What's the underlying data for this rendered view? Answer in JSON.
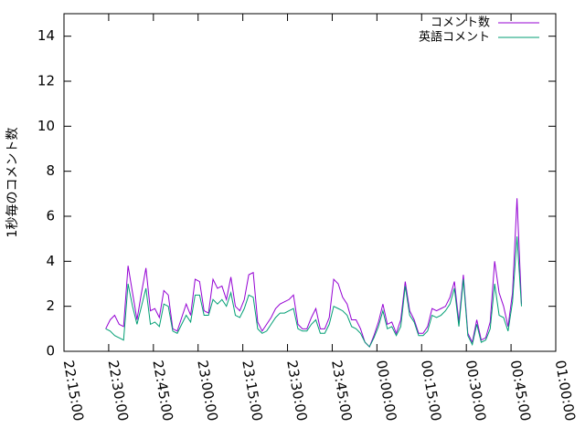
{
  "chart_data": {
    "type": "line",
    "ylabel": "1秒毎のコメント数",
    "x": [
      "22:29:00",
      "22:30:30",
      "22:32:00",
      "22:33:30",
      "22:35:00",
      "22:36:30",
      "22:38:00",
      "22:39:30",
      "22:41:00",
      "22:42:30",
      "22:44:00",
      "22:45:30",
      "22:47:00",
      "22:48:30",
      "22:50:00",
      "22:51:30",
      "22:53:00",
      "22:54:30",
      "22:56:00",
      "22:57:30",
      "22:59:00",
      "23:00:30",
      "23:02:00",
      "23:03:30",
      "23:05:00",
      "23:06:30",
      "23:08:00",
      "23:09:30",
      "23:11:00",
      "23:12:30",
      "23:14:00",
      "23:15:30",
      "23:17:00",
      "23:18:30",
      "23:20:00",
      "23:21:30",
      "23:23:00",
      "23:24:30",
      "23:26:00",
      "23:27:30",
      "23:29:00",
      "23:30:30",
      "23:32:00",
      "23:33:30",
      "23:35:00",
      "23:36:30",
      "23:38:00",
      "23:39:30",
      "23:41:00",
      "23:42:30",
      "23:44:00",
      "23:45:30",
      "23:47:00",
      "23:48:30",
      "23:50:00",
      "23:51:30",
      "23:53:00",
      "23:54:30",
      "23:56:00",
      "23:57:30",
      "23:59:00",
      "00:00:30",
      "00:02:00",
      "00:03:30",
      "00:05:00",
      "00:06:30",
      "00:08:00",
      "00:09:30",
      "00:11:00",
      "00:12:30",
      "00:14:00",
      "00:15:30",
      "00:17:00",
      "00:18:30",
      "00:20:00",
      "00:21:30",
      "00:23:00",
      "00:24:30",
      "00:26:00",
      "00:27:30",
      "00:29:00",
      "00:30:30",
      "00:32:00",
      "00:33:30",
      "00:35:00",
      "00:36:30",
      "00:38:00",
      "00:39:30",
      "00:41:00",
      "00:42:30",
      "00:44:00",
      "00:45:30",
      "00:47:00",
      "00:48:30"
    ],
    "series": [
      {
        "name": "コメント数",
        "color": "#9400d3",
        "values": [
          1.0,
          1.4,
          1.6,
          1.2,
          1.1,
          3.8,
          2.6,
          1.4,
          2.6,
          3.7,
          1.8,
          1.9,
          1.5,
          2.7,
          2.5,
          1.0,
          0.9,
          1.5,
          2.1,
          1.6,
          3.2,
          3.1,
          1.8,
          1.7,
          3.2,
          2.8,
          2.9,
          2.3,
          3.3,
          2.0,
          1.8,
          2.3,
          3.4,
          3.5,
          1.3,
          0.9,
          1.2,
          1.5,
          1.9,
          2.1,
          2.2,
          2.3,
          2.5,
          1.2,
          1.0,
          1.0,
          1.5,
          1.9,
          1.0,
          1.0,
          1.5,
          3.2,
          3.0,
          2.4,
          2.1,
          1.4,
          1.4,
          1.0,
          0.4,
          0.2,
          0.7,
          1.3,
          2.1,
          1.2,
          1.3,
          0.8,
          1.4,
          3.1,
          1.8,
          1.4,
          0.8,
          0.8,
          1.1,
          1.9,
          1.8,
          1.9,
          2.0,
          2.4,
          3.1,
          1.3,
          3.4,
          0.8,
          0.4,
          1.4,
          0.5,
          0.6,
          1.3,
          4.0,
          2.6,
          2.0,
          1.1,
          2.6,
          6.8,
          2.1
        ]
      },
      {
        "name": "英語コメント",
        "color": "#009e73",
        "values": [
          1.0,
          0.9,
          0.7,
          0.6,
          0.5,
          3.0,
          2.0,
          1.2,
          2.0,
          2.8,
          1.2,
          1.3,
          1.1,
          2.1,
          2.0,
          0.9,
          0.8,
          1.2,
          1.6,
          1.3,
          2.5,
          2.5,
          1.6,
          1.6,
          2.3,
          2.1,
          2.3,
          2.0,
          2.6,
          1.6,
          1.5,
          1.9,
          2.5,
          2.4,
          1.0,
          0.8,
          0.9,
          1.2,
          1.5,
          1.7,
          1.7,
          1.8,
          1.9,
          1.0,
          0.9,
          0.9,
          1.2,
          1.4,
          0.8,
          0.8,
          1.2,
          2.0,
          1.9,
          1.8,
          1.6,
          1.1,
          1.0,
          0.8,
          0.4,
          0.2,
          0.6,
          1.1,
          1.8,
          1.0,
          1.1,
          0.7,
          1.1,
          2.9,
          1.6,
          1.3,
          0.7,
          0.7,
          0.9,
          1.6,
          1.5,
          1.6,
          1.8,
          2.1,
          2.8,
          1.1,
          3.2,
          0.7,
          0.3,
          1.2,
          0.4,
          0.5,
          1.0,
          3.0,
          1.6,
          1.5,
          0.9,
          2.2,
          5.1,
          2.0
        ]
      }
    ],
    "xlim": [
      "22:15:00",
      "01:00:00"
    ],
    "xticks": [
      "22:15:00",
      "22:30:00",
      "22:45:00",
      "23:00:00",
      "23:15:00",
      "23:30:00",
      "23:45:00",
      "00:00:00",
      "00:15:00",
      "00:30:00",
      "00:45:00",
      "01:00:00"
    ],
    "ylim": [
      0,
      15
    ],
    "yticks": [
      0,
      2,
      4,
      6,
      8,
      10,
      12,
      14
    ],
    "legend": "top-right"
  }
}
